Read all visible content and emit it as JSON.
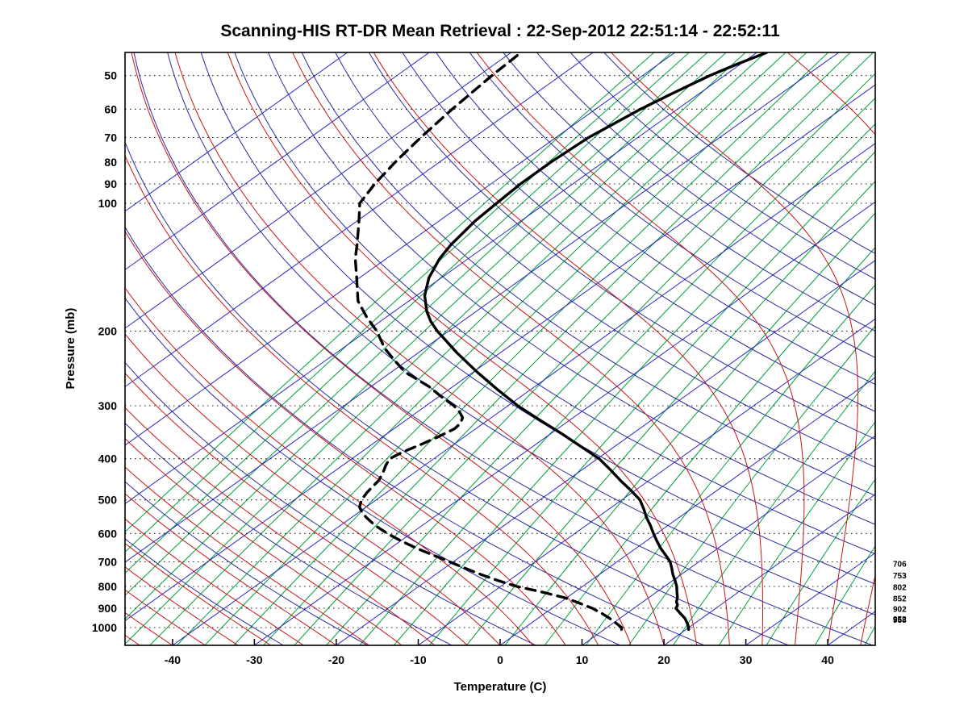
{
  "window": {
    "background": "#ffffff"
  },
  "chart_data": {
    "type": "line",
    "variant": "skew-t-log-p-sounding",
    "title": "Scanning-HIS RT-DR Mean Retrieval : 22-Sep-2012 22:51:14 - 22:52:11",
    "xlabel": "Temperature (C)",
    "ylabel": "Pressure (mb)",
    "x_ticks_c": [
      -40,
      -30,
      -20,
      -10,
      0,
      10,
      20,
      30,
      40
    ],
    "y_ticks_mb": [
      50,
      60,
      70,
      80,
      90,
      100,
      200,
      300,
      400,
      500,
      600,
      700,
      800,
      900,
      1000
    ],
    "x_axis_range_c": [
      -45.8,
      45.8
    ],
    "pressure_range_mb": [
      44.1,
      1101
    ],
    "skew_ratio": 1.4,
    "grid": "dotted horizontal black lines at labeled pressure levels",
    "legend_position": "none",
    "series": [
      {
        "name": "temperature",
        "style": "solid",
        "color": "#000000",
        "width": 3.4,
        "points_p_mb_t_c": [
          [
            1010,
            20.3
          ],
          [
            1000,
            20.0
          ],
          [
            975,
            19.0
          ],
          [
            950,
            17.9
          ],
          [
            925,
            16.5
          ],
          [
            900,
            15.1
          ],
          [
            885,
            14.8
          ],
          [
            870,
            14.1
          ],
          [
            850,
            13.5
          ],
          [
            825,
            12.5
          ],
          [
            800,
            11.5
          ],
          [
            775,
            10.3
          ],
          [
            750,
            9.0
          ],
          [
            725,
            7.8
          ],
          [
            700,
            6.5
          ],
          [
            675,
            4.8
          ],
          [
            650,
            3.0
          ],
          [
            625,
            1.3
          ],
          [
            600,
            -0.4
          ],
          [
            575,
            -2.1
          ],
          [
            550,
            -4.0
          ],
          [
            525,
            -5.8
          ],
          [
            500,
            -7.8
          ],
          [
            475,
            -10.5
          ],
          [
            450,
            -13.5
          ],
          [
            425,
            -16.5
          ],
          [
            400,
            -19.8
          ],
          [
            375,
            -24.0
          ],
          [
            350,
            -28.5
          ],
          [
            325,
            -33.5
          ],
          [
            300,
            -38.8
          ],
          [
            275,
            -44.0
          ],
          [
            250,
            -49.5
          ],
          [
            225,
            -55.3
          ],
          [
            200,
            -61.4
          ],
          [
            190,
            -63.8
          ],
          [
            180,
            -66.0
          ],
          [
            165,
            -69.0
          ],
          [
            150,
            -71.5
          ],
          [
            135,
            -73.5
          ],
          [
            125,
            -74.5
          ],
          [
            110,
            -75.6
          ],
          [
            100,
            -76.0
          ],
          [
            90,
            -76.4
          ],
          [
            80,
            -76.4
          ],
          [
            70,
            -76.0
          ],
          [
            60,
            -74.5
          ],
          [
            55,
            -73.3
          ],
          [
            50,
            -71.8
          ],
          [
            47,
            -70.4
          ],
          [
            44.1,
            -68.8
          ]
        ]
      },
      {
        "name": "dew_point",
        "style": "dashed",
        "color": "#000000",
        "width": 3.4,
        "points_p_mb_t_c": [
          [
            1010,
            12.1
          ],
          [
            1000,
            11.8
          ],
          [
            975,
            10.3
          ],
          [
            950,
            8.7
          ],
          [
            925,
            6.9
          ],
          [
            900,
            4.9
          ],
          [
            875,
            2.4
          ],
          [
            850,
            -0.3
          ],
          [
            825,
            -3.9
          ],
          [
            800,
            -8.0
          ],
          [
            775,
            -11.3
          ],
          [
            750,
            -14.4
          ],
          [
            725,
            -17.4
          ],
          [
            700,
            -20.4
          ],
          [
            675,
            -23.6
          ],
          [
            650,
            -26.8
          ],
          [
            625,
            -29.9
          ],
          [
            600,
            -32.9
          ],
          [
            575,
            -35.7
          ],
          [
            550,
            -38.2
          ],
          [
            535,
            -39.6
          ],
          [
            520,
            -40.8
          ],
          [
            500,
            -41.8
          ],
          [
            480,
            -42.4
          ],
          [
            460,
            -42.8
          ],
          [
            450,
            -43.0
          ],
          [
            430,
            -43.9
          ],
          [
            415,
            -44.7
          ],
          [
            400,
            -45.4
          ],
          [
            385,
            -44.9
          ],
          [
            370,
            -44.0
          ],
          [
            355,
            -43.2
          ],
          [
            340,
            -42.6
          ],
          [
            330,
            -42.8
          ],
          [
            320,
            -43.5
          ],
          [
            310,
            -44.9
          ],
          [
            300,
            -46.6
          ],
          [
            285,
            -49.8
          ],
          [
            270,
            -53.0
          ],
          [
            250,
            -58.3
          ],
          [
            235,
            -61.5
          ],
          [
            220,
            -64.8
          ],
          [
            200,
            -68.8
          ],
          [
            185,
            -72.5
          ],
          [
            170,
            -76.2
          ],
          [
            150,
            -80.3
          ],
          [
            135,
            -83.8
          ],
          [
            125,
            -86.0
          ],
          [
            110,
            -89.8
          ],
          [
            100,
            -92.7
          ],
          [
            90,
            -94.2
          ],
          [
            80,
            -95.4
          ],
          [
            70,
            -96.5
          ],
          [
            60,
            -97.5
          ],
          [
            50,
            -98.4
          ],
          [
            44.1,
            -98.8
          ]
        ]
      }
    ],
    "reference_lines": {
      "isotherms": {
        "color": "#2626c4",
        "min_c": -120,
        "max_c": 40,
        "step_c": 10,
        "width": 1
      },
      "dry_adiabats": {
        "color": "#2a2a9e",
        "min_theta_k": 240,
        "max_theta_k": 450,
        "step_k": 10,
        "width": 1
      },
      "moist_adiabats": {
        "color": "#c81414",
        "min_t0_c": -44,
        "max_t0_c": 44,
        "step_c": 4,
        "width": 1
      },
      "mixing_ratio_lines": {
        "color": "#00a03c",
        "min_w_gkg": 0.01,
        "ratio_step": 1.4142,
        "count": 27,
        "width": 1
      },
      "pressure_lines": {
        "color": "#1a1a1a",
        "style": "dotted",
        "width": 1.1
      }
    },
    "right_level_labels": [
      {
        "pressure_mb": 706,
        "label": "706"
      },
      {
        "pressure_mb": 753,
        "label": "753"
      },
      {
        "pressure_mb": 802,
        "label": "802"
      },
      {
        "pressure_mb": 852,
        "label": "852"
      },
      {
        "pressure_mb": 902,
        "label": "902"
      },
      {
        "pressure_mb": 952,
        "label": "952"
      },
      {
        "pressure_mb": 958,
        "label": "958"
      }
    ]
  }
}
